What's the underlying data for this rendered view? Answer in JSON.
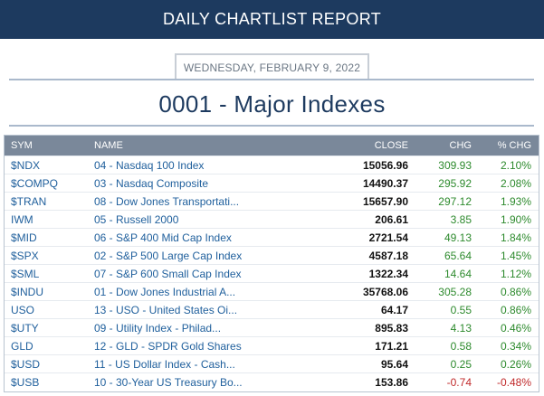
{
  "header": {
    "title": "DAILY CHARTLIST REPORT"
  },
  "report": {
    "date": "WEDNESDAY, FEBRUARY 9, 2022",
    "list_title": "0001 - Major Indexes"
  },
  "table": {
    "columns": {
      "sym": "SYM",
      "name": "NAME",
      "close": "CLOSE",
      "chg": "CHG",
      "pct": "% CHG"
    },
    "colors": {
      "positive": "#2d8a2d",
      "negative": "#c0292a",
      "link": "#1f5f9c"
    },
    "rows": [
      {
        "sym": "$NDX",
        "name": "04 - Nasdaq 100 Index",
        "close": "15056.96",
        "chg": "309.93",
        "pct": "2.10%",
        "dir": "pos"
      },
      {
        "sym": "$COMPQ",
        "name": "03 - Nasdaq Composite",
        "close": "14490.37",
        "chg": "295.92",
        "pct": "2.08%",
        "dir": "pos"
      },
      {
        "sym": "$TRAN",
        "name": "08 - Dow Jones Transportati...",
        "close": "15657.90",
        "chg": "297.12",
        "pct": "1.93%",
        "dir": "pos"
      },
      {
        "sym": "IWM",
        "name": "05 - Russell 2000",
        "close": "206.61",
        "chg": "3.85",
        "pct": "1.90%",
        "dir": "pos"
      },
      {
        "sym": "$MID",
        "name": "06 - S&P 400 Mid Cap Index",
        "close": "2721.54",
        "chg": "49.13",
        "pct": "1.84%",
        "dir": "pos"
      },
      {
        "sym": "$SPX",
        "name": "02 - S&P 500 Large Cap Index",
        "close": "4587.18",
        "chg": "65.64",
        "pct": "1.45%",
        "dir": "pos"
      },
      {
        "sym": "$SML",
        "name": "07 - S&P 600 Small Cap Index",
        "close": "1322.34",
        "chg": "14.64",
        "pct": "1.12%",
        "dir": "pos"
      },
      {
        "sym": "$INDU",
        "name": "01 - Dow Jones Industrial A...",
        "close": "35768.06",
        "chg": "305.28",
        "pct": "0.86%",
        "dir": "pos"
      },
      {
        "sym": "USO",
        "name": "13 - USO - United States Oi...",
        "close": "64.17",
        "chg": "0.55",
        "pct": "0.86%",
        "dir": "pos"
      },
      {
        "sym": "$UTY",
        "name": "09 - Utility Index - Philad...",
        "close": "895.83",
        "chg": "4.13",
        "pct": "0.46%",
        "dir": "pos"
      },
      {
        "sym": "GLD",
        "name": "12 - GLD - SPDR Gold Shares",
        "close": "171.21",
        "chg": "0.58",
        "pct": "0.34%",
        "dir": "pos"
      },
      {
        "sym": "$USD",
        "name": "11 - US Dollar Index - Cash...",
        "close": "95.64",
        "chg": "0.25",
        "pct": "0.26%",
        "dir": "pos"
      },
      {
        "sym": "$USB",
        "name": "10 - 30-Year US Treasury Bo...",
        "close": "153.86",
        "chg": "-0.74",
        "pct": "-0.48%",
        "dir": "neg"
      }
    ]
  }
}
